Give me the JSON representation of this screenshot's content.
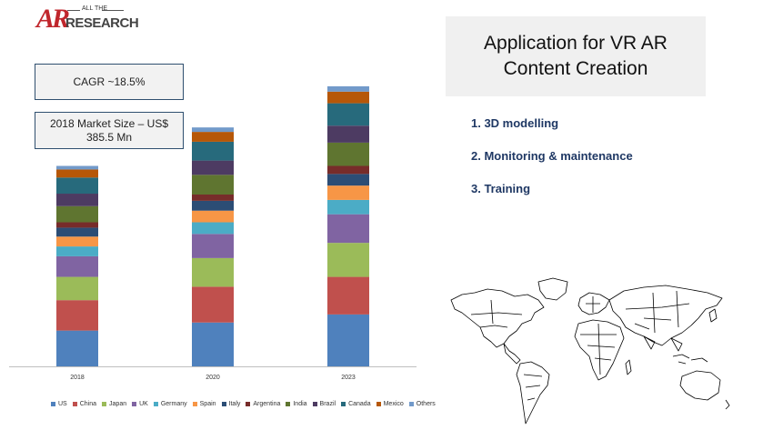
{
  "logo": {
    "mark": "AR",
    "tagline": "ALL THE",
    "name": "RESEARCH"
  },
  "cagr": "CAGR ~18.5%",
  "market_size": {
    "line1": "2018 Market Size – US$",
    "line2": "385.5 Mn"
  },
  "title": {
    "line1": "Application for VR AR",
    "line2": "Content Creation"
  },
  "applications": [
    "1. 3D modelling",
    "2. Monitoring & maintenance",
    "3. Training"
  ],
  "colors": {
    "US": "#4f81bd",
    "China": "#c0504d",
    "Japan": "#9bbb59",
    "UK": "#8064a2",
    "Germany": "#4bacc6",
    "Spain": "#f79646",
    "Italy": "#2c4d75",
    "Argentina": "#772c2a",
    "India": "#5f7530",
    "Brazil": "#4d3b62",
    "Canada": "#276a7c",
    "Mexico": "#b65708",
    "Others": "#729aca"
  },
  "chart_data": {
    "type": "bar",
    "stacked": true,
    "categories": [
      "2018",
      "2020",
      "2023"
    ],
    "series": [
      {
        "name": "US",
        "values": [
          40,
          49,
          58
        ]
      },
      {
        "name": "China",
        "values": [
          34,
          40,
          42
        ]
      },
      {
        "name": "Japan",
        "values": [
          26,
          32,
          38
        ]
      },
      {
        "name": "UK",
        "values": [
          23,
          27,
          32
        ]
      },
      {
        "name": "Germany",
        "values": [
          11,
          13,
          16
        ]
      },
      {
        "name": "Spain",
        "values": [
          11,
          13,
          16
        ]
      },
      {
        "name": "Italy",
        "values": [
          10,
          11,
          13
        ]
      },
      {
        "name": "Argentina",
        "values": [
          6,
          7,
          9
        ]
      },
      {
        "name": "India",
        "values": [
          18,
          22,
          26
        ]
      },
      {
        "name": "Brazil",
        "values": [
          14,
          16,
          19
        ]
      },
      {
        "name": "Canada",
        "values": [
          18,
          21,
          25
        ]
      },
      {
        "name": "Mexico",
        "values": [
          9,
          11,
          13
        ]
      },
      {
        "name": "Others",
        "values": [
          4,
          5,
          6
        ]
      }
    ],
    "legend_position": "bottom",
    "grid": false,
    "ylim": [
      0,
      320
    ]
  }
}
